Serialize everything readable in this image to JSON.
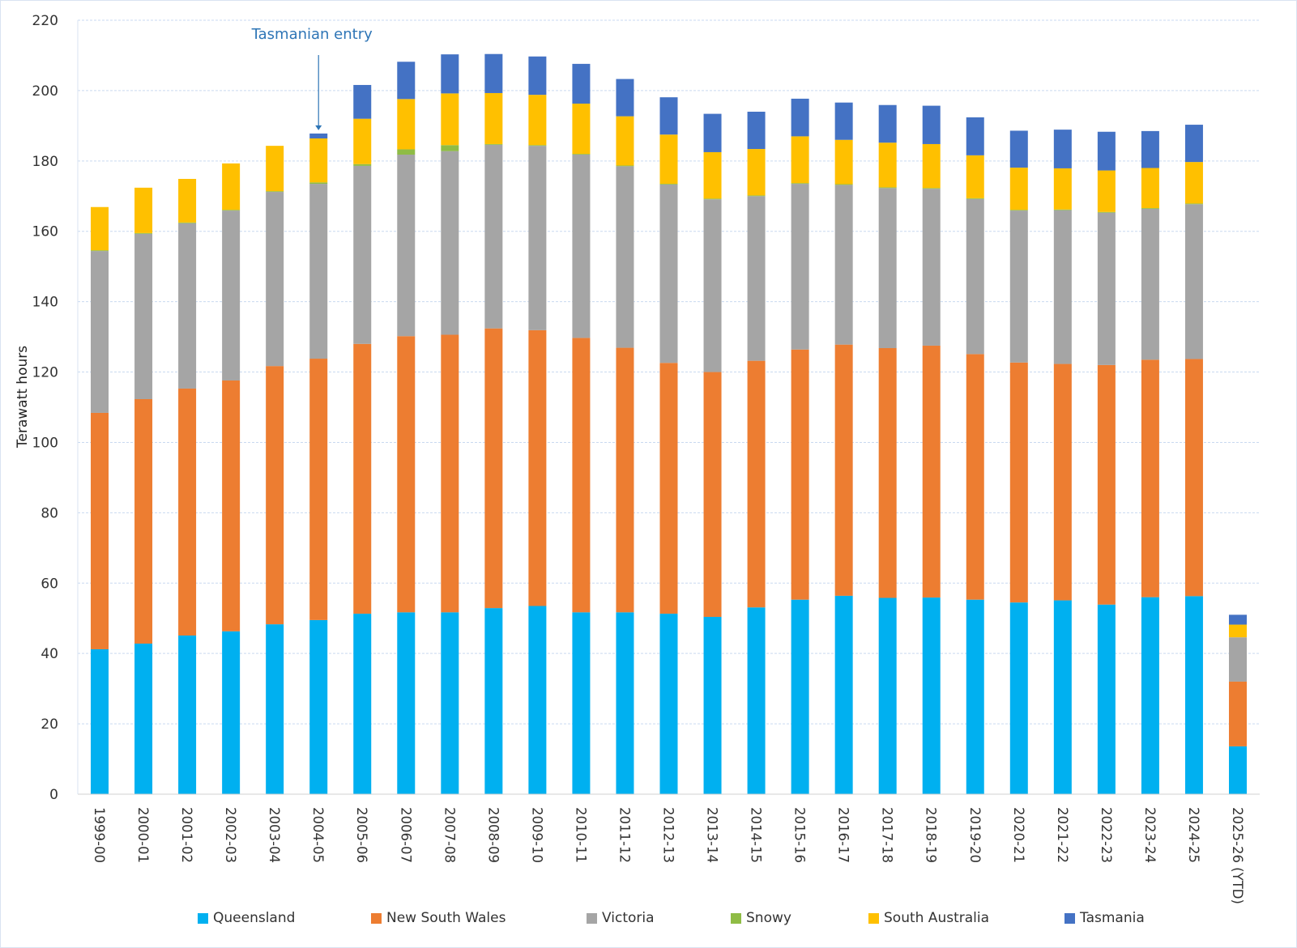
{
  "chart_data": {
    "type": "bar",
    "stacked": true,
    "title": "",
    "xlabel": "",
    "ylabel": "Terawatt hours",
    "ylim": [
      0,
      220
    ],
    "yticks": [
      0,
      20,
      40,
      60,
      80,
      100,
      120,
      140,
      160,
      180,
      200,
      220
    ],
    "grid": true,
    "legend_position": "bottom",
    "categories": [
      "1999-00",
      "2000-01",
      "2001-02",
      "2002-03",
      "2003-04",
      "2004-05",
      "2005-06",
      "2006-07",
      "2007-08",
      "2008-09",
      "2009-10",
      "2010-11",
      "2011-12",
      "2012-13",
      "2013-14",
      "2014-15",
      "2015-16",
      "2016-17",
      "2017-18",
      "2018-19",
      "2019-20",
      "2020-21",
      "2021-22",
      "2022-23",
      "2023-24",
      "2024-25",
      "2025-26 (YTD)"
    ],
    "series": [
      {
        "name": "Queensland",
        "color": "#00b0f0",
        "values": [
          41.2,
          42.8,
          45.1,
          46.3,
          48.3,
          49.5,
          51.3,
          51.7,
          51.7,
          52.9,
          53.5,
          51.7,
          51.7,
          51.3,
          50.4,
          53.1,
          55.3,
          56.4,
          55.8,
          55.9,
          55.3,
          54.5,
          55.1,
          53.9,
          56.0,
          56.3,
          13.6
        ]
      },
      {
        "name": "New South Wales",
        "color": "#ed7d31",
        "values": [
          67.2,
          69.5,
          70.2,
          71.3,
          73.4,
          74.3,
          76.7,
          78.5,
          78.9,
          79.5,
          78.4,
          78.0,
          75.2,
          71.3,
          69.6,
          70.1,
          71.1,
          71.4,
          71.0,
          71.6,
          69.8,
          68.2,
          67.2,
          68.1,
          67.5,
          67.4,
          18.4
        ]
      },
      {
        "name": "Victoria",
        "color": "#a5a5a5",
        "values": [
          46.0,
          47.0,
          47.0,
          48.3,
          49.5,
          49.7,
          50.6,
          51.6,
          52.2,
          52.2,
          52.4,
          52.1,
          51.6,
          50.7,
          49.1,
          46.8,
          47.1,
          45.4,
          45.5,
          44.6,
          44.1,
          43.2,
          43.7,
          43.3,
          42.9,
          44.0,
          12.6
        ]
      },
      {
        "name": "Snowy",
        "color": "#8fbc45",
        "values": [
          0.2,
          0.2,
          0.2,
          0.2,
          0.2,
          0.4,
          0.5,
          1.5,
          1.7,
          0.2,
          0.2,
          0.2,
          0.2,
          0.2,
          0.2,
          0.2,
          0.2,
          0.2,
          0.2,
          0.2,
          0.2,
          0.2,
          0.2,
          0.2,
          0.2,
          0.2,
          0.0
        ]
      },
      {
        "name": "South Australia",
        "color": "#ffc000",
        "values": [
          12.3,
          12.9,
          12.4,
          13.2,
          12.9,
          12.5,
          12.9,
          14.3,
          14.7,
          14.5,
          14.3,
          14.3,
          14.0,
          14.0,
          13.2,
          13.2,
          13.3,
          12.6,
          12.7,
          12.5,
          12.2,
          12.0,
          11.7,
          11.8,
          11.4,
          11.8,
          3.6
        ]
      },
      {
        "name": "Tasmania",
        "color": "#4472c4",
        "values": [
          0,
          0,
          0,
          0,
          0,
          1.4,
          9.6,
          10.6,
          11.1,
          11.1,
          10.9,
          11.3,
          10.6,
          10.6,
          10.9,
          10.6,
          10.7,
          10.6,
          10.7,
          10.9,
          10.8,
          10.5,
          11.0,
          11.0,
          10.5,
          10.6,
          2.8
        ]
      }
    ],
    "annotations": [
      {
        "text": "Tasmanian entry",
        "category": "2004-05",
        "arrow": "down"
      }
    ]
  }
}
